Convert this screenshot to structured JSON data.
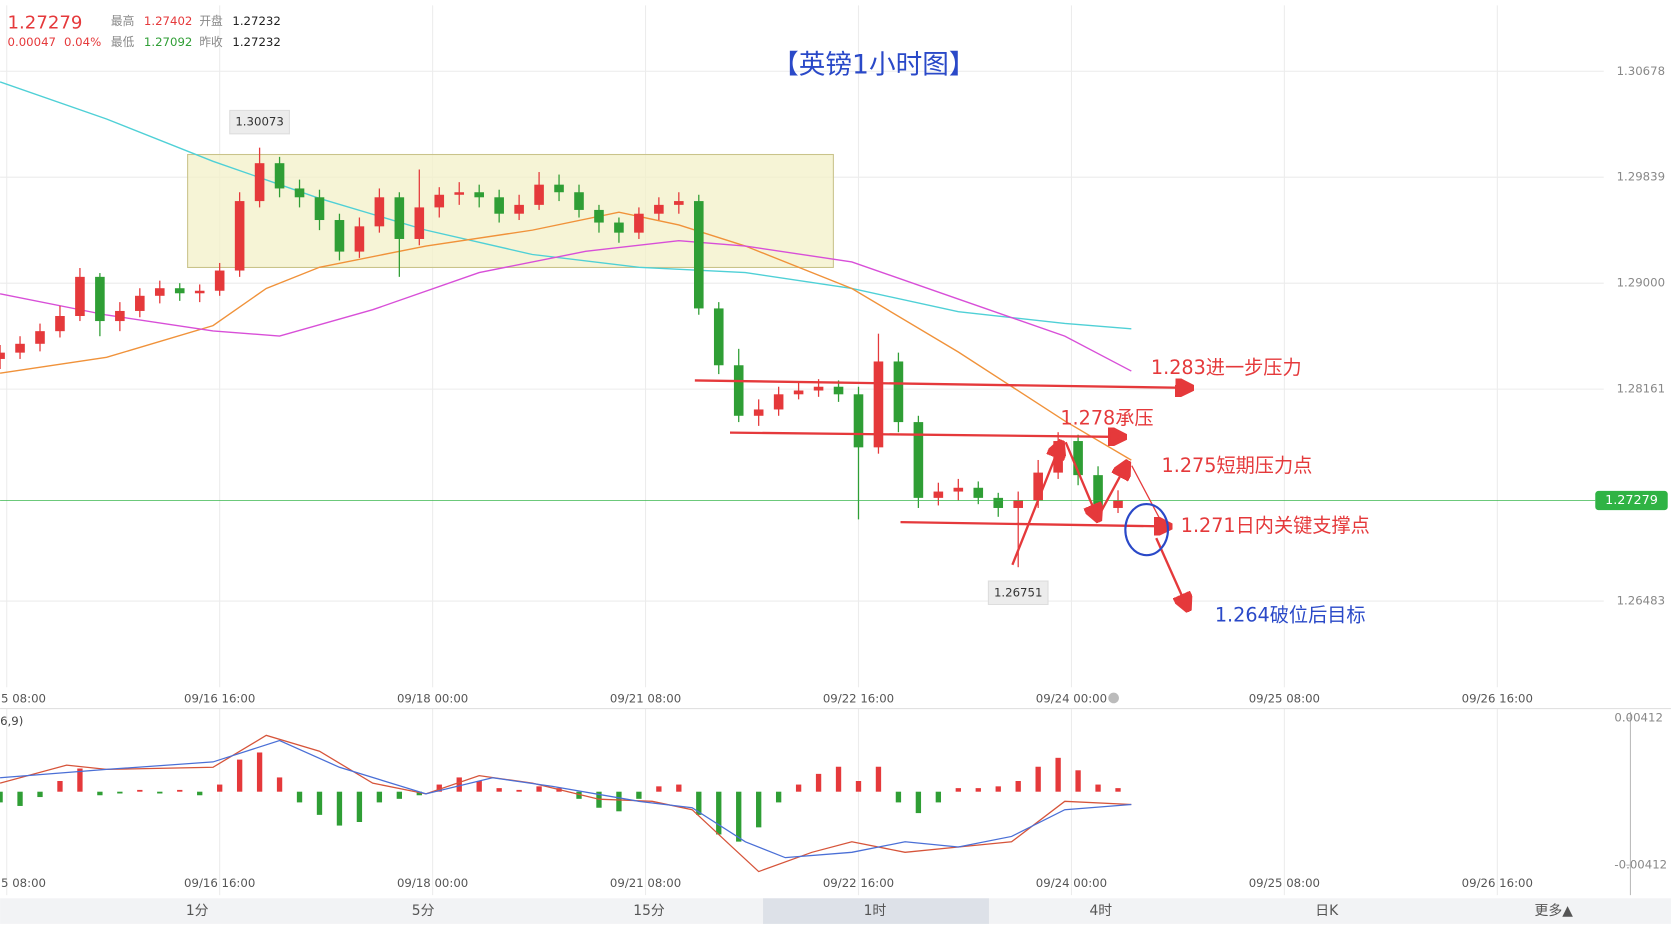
{
  "header": {
    "price": "1.27279",
    "change": "0.00047",
    "change_pct": "0.04%",
    "high_label": "最高",
    "high": "1.27402",
    "open_label": "开盘",
    "open": "1.27232",
    "low_label": "最低",
    "low": "1.27092",
    "prev_label": "昨收",
    "prev": "1.27232"
  },
  "chart_data": {
    "type": "candlestick",
    "title": "【英镑1小时图】",
    "up_color": "#e5393b",
    "down_color": "#2f9e35",
    "grid": true,
    "x": [
      0,
      3,
      6,
      9,
      12,
      15,
      18,
      21,
      24,
      27,
      30,
      33,
      36,
      39,
      42,
      45,
      48,
      51,
      54,
      57,
      60,
      63,
      66,
      69,
      72,
      75,
      78,
      81,
      84,
      87,
      90,
      93,
      96,
      99,
      102,
      105,
      108,
      111,
      114,
      117,
      120,
      123,
      126,
      129,
      132,
      135,
      138,
      141,
      144,
      147,
      150,
      153,
      156,
      159,
      162,
      165,
      168
    ],
    "open": [
      1.284,
      1.2845,
      1.2852,
      1.2862,
      1.2874,
      1.2905,
      1.287,
      1.2878,
      1.289,
      1.2896,
      1.2892,
      1.2894,
      1.291,
      1.2965,
      1.2995,
      1.2975,
      1.2968,
      1.295,
      1.2925,
      1.2945,
      1.2968,
      1.2935,
      1.296,
      1.297,
      1.2972,
      1.2968,
      1.2955,
      1.2962,
      1.2978,
      1.2972,
      1.2958,
      1.2948,
      1.294,
      1.2955,
      1.2962,
      1.2965,
      1.288,
      1.2835,
      1.2795,
      1.28,
      1.2812,
      1.2815,
      1.2818,
      1.2812,
      1.277,
      1.2838,
      1.279,
      1.273,
      1.2735,
      1.2738,
      1.273,
      1.2722,
      1.2728,
      1.275,
      1.2775,
      1.2748,
      1.2722
    ],
    "high": [
      1.2851,
      1.2858,
      1.2868,
      1.2882,
      1.2912,
      1.2908,
      1.2885,
      1.2896,
      1.2902,
      1.29,
      1.2899,
      1.2916,
      1.2972,
      1.30073,
      1.3,
      1.2982,
      1.2974,
      1.2955,
      1.2952,
      1.2975,
      1.2972,
      1.299,
      1.2976,
      1.298,
      1.2978,
      1.2974,
      1.297,
      1.2988,
      1.2986,
      1.2978,
      1.2962,
      1.2952,
      1.296,
      1.2968,
      1.2972,
      1.297,
      1.2885,
      1.2848,
      1.2808,
      1.2818,
      1.2822,
      1.2824,
      1.2823,
      1.2818,
      1.286,
      1.2845,
      1.2795,
      1.2742,
      1.2745,
      1.2743,
      1.2734,
      1.2735,
      1.276,
      1.2782,
      1.278,
      1.2755,
      1.2736
    ],
    "low": [
      1.2832,
      1.284,
      1.2846,
      1.2857,
      1.287,
      1.2858,
      1.2862,
      1.2873,
      1.2884,
      1.2886,
      1.2885,
      1.289,
      1.2905,
      1.296,
      1.2968,
      1.296,
      1.2942,
      1.2918,
      1.292,
      1.294,
      1.2905,
      1.293,
      1.2952,
      1.2962,
      1.296,
      1.2948,
      1.295,
      1.2958,
      1.2965,
      1.2952,
      1.294,
      1.2932,
      1.2935,
      1.295,
      1.2955,
      1.2875,
      1.2828,
      1.279,
      1.2787,
      1.2795,
      1.2808,
      1.281,
      1.2806,
      1.2713,
      1.2765,
      1.2782,
      1.2722,
      1.2724,
      1.2728,
      1.2725,
      1.2715,
      1.26751,
      1.2722,
      1.2745,
      1.274,
      1.2718,
      1.2718
    ],
    "close": [
      1.2845,
      1.2852,
      1.2862,
      1.2874,
      1.2905,
      1.287,
      1.2878,
      1.289,
      1.2896,
      1.2892,
      1.2894,
      1.291,
      1.2965,
      1.2995,
      1.2975,
      1.2968,
      1.295,
      1.2925,
      1.2945,
      1.2968,
      1.2935,
      1.296,
      1.297,
      1.2972,
      1.2968,
      1.2955,
      1.2962,
      1.2978,
      1.2972,
      1.2958,
      1.2948,
      1.294,
      1.2955,
      1.2962,
      1.2965,
      1.288,
      1.2835,
      1.2795,
      1.28,
      1.2812,
      1.2815,
      1.2818,
      1.2812,
      1.277,
      1.2838,
      1.279,
      1.273,
      1.2735,
      1.2738,
      1.273,
      1.2722,
      1.2728,
      1.275,
      1.2775,
      1.2748,
      1.2722,
      1.27279
    ],
    "lines": [
      {
        "color": "#4fd0d6",
        "x": [
          0,
          16,
          32,
          48,
          64,
          80,
          96,
          112,
          128,
          144,
          160,
          170
        ],
        "values": [
          1.30594,
          1.303,
          1.29965,
          1.29671,
          1.2942,
          1.29227,
          1.29126,
          1.29084,
          1.28958,
          1.28774,
          1.28681,
          1.28639
        ]
      },
      {
        "color": "#f0923a",
        "x": [
          0,
          16,
          32,
          40,
          48,
          64,
          80,
          93,
          102,
          112,
          128,
          144,
          160,
          170
        ],
        "values": [
          1.28287,
          1.28413,
          1.28664,
          1.28958,
          1.29126,
          1.29294,
          1.2942,
          1.29562,
          1.29461,
          1.29294,
          1.28958,
          1.28455,
          1.27909,
          1.27599
        ]
      },
      {
        "color": "#d84fd8",
        "x": [
          0,
          16,
          32,
          42,
          56,
          72,
          88,
          102,
          112,
          128,
          144,
          160,
          170
        ],
        "values": [
          1.28916,
          1.28748,
          1.28622,
          1.28581,
          1.2879,
          1.29084,
          1.29252,
          1.29336,
          1.29294,
          1.29168,
          1.28874,
          1.28581,
          1.28304
        ]
      }
    ],
    "last_price": 1.27279,
    "last_color": "#2fb344",
    "xlim": [
      0,
      241
    ],
    "xticks": [
      {
        "value": 1,
        "label": "5 08:00"
      },
      {
        "value": 33,
        "label": "09/16 16:00"
      },
      {
        "value": 65,
        "label": "09/18 00:00"
      },
      {
        "value": 97,
        "label": "09/21 08:00"
      },
      {
        "value": 129,
        "label": "09/22 16:00"
      },
      {
        "value": 161,
        "label": "09/24 00:00"
      },
      {
        "value": 193,
        "label": "09/25 08:00"
      },
      {
        "value": 225,
        "label": "09/26 16:00"
      }
    ],
    "ylim": [
      1.258,
      1.312
    ],
    "yticks": [
      1.30678,
      1.29839,
      {
        "value": 1.29,
        "label": "1.29000"
      },
      1.28161,
      1.26483
    ],
    "annotations": [
      {
        "text": "1.283进一步压力",
        "color": "#e5393b"
      },
      {
        "text": "1.278承压",
        "color": "#e5393b"
      },
      {
        "text": "1.275短期压力点",
        "color": "#e5393b"
      },
      {
        "text": "1.271日内关键支撑点",
        "color": "#e5393b"
      },
      {
        "text": "1.264破位后目标",
        "color": "#2a49c8"
      }
    ],
    "macd": {
      "label": "6,9)",
      "ylim": [
        -0.0058,
        0.00466
      ],
      "yticks": [
        0.00412,
        -0.00412
      ],
      "histogram": [
        -0.0006,
        -0.0008,
        -0.0003,
        0.0006,
        0.0013,
        -0.0002,
        -0.0001,
        0.0001,
        -0.0001,
        0.0001,
        -0.0002,
        0.0004,
        0.0018,
        0.0022,
        0.0008,
        -0.0006,
        -0.0013,
        -0.0019,
        -0.0017,
        -0.0006,
        -0.0004,
        -0.0002,
        0.0004,
        0.0008,
        0.0006,
        0.0002,
        0.0001,
        0.0003,
        0.0002,
        -0.0004,
        -0.0009,
        -0.0011,
        -0.0004,
        0.0003,
        0.0004,
        -0.0013,
        -0.0024,
        -0.0028,
        -0.002,
        -0.0006,
        0.0004,
        0.001,
        0.0014,
        0.0006,
        0.0014,
        -0.0006,
        -0.0012,
        -0.0006,
        0.0002,
        0.0002,
        0.0003,
        0.0006,
        0.0014,
        0.0019,
        0.0012,
        0.0004,
        0.0002
      ],
      "lines": [
        {
          "color": "#d6543a",
          "x": [
            0,
            10,
            16,
            32,
            40,
            48,
            56,
            64,
            72,
            80,
            90,
            98,
            104,
            110,
            114,
            122,
            128,
            136,
            144,
            152,
            160,
            170
          ],
          "values": [
            0.00048,
            0.00149,
            0.00125,
            0.00137,
            0.00316,
            0.00227,
            0.00048,
            -0.00012,
            0.0009,
            0.00048,
            -0.00042,
            -0.00054,
            -0.00101,
            -0.0031,
            -0.00448,
            -0.0034,
            -0.00281,
            -0.0034,
            -0.0031,
            -0.00281,
            -0.00054,
            -0.00072
          ]
        },
        {
          "color": "#4a6fd6",
          "x": [
            0,
            16,
            32,
            42,
            51,
            64,
            74,
            83,
            96,
            104,
            112,
            118,
            128,
            136,
            144,
            152,
            160,
            170
          ],
          "values": [
            0.00078,
            0.00125,
            0.00167,
            0.00287,
            0.00137,
            -0.00012,
            0.00078,
            0.0003,
            -0.00054,
            -0.0009,
            -0.00281,
            -0.0037,
            -0.0034,
            -0.00281,
            -0.0031,
            -0.00251,
            -0.00101,
            -0.00072
          ]
        }
      ]
    }
  },
  "toolbar": {
    "items": [
      "1分",
      "5分",
      "15分",
      "1时",
      "4时",
      "日K",
      "更多▲"
    ],
    "selected": 3
  }
}
